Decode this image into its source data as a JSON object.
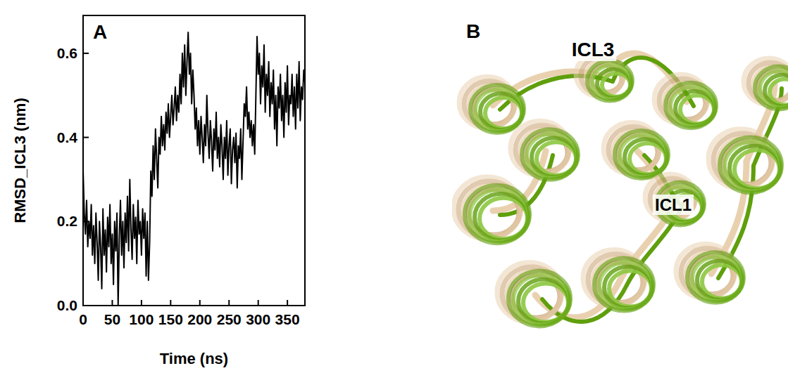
{
  "chart_data": {
    "type": "line",
    "title": "A",
    "xlabel": "Time (ns)",
    "ylabel": "RMSD_ICL3 (nm)",
    "color": "#000000",
    "grid": false,
    "xlim": [
      0,
      380
    ],
    "xticks": [
      0,
      50,
      100,
      150,
      200,
      250,
      300,
      350
    ],
    "ylim": [
      0,
      0.69
    ],
    "yticks": [
      {
        "value": 0,
        "label": "0.0"
      },
      0.2,
      0.4,
      0.6
    ],
    "x": [
      0,
      2,
      4,
      6,
      8,
      10,
      12,
      14,
      16,
      18,
      20,
      22,
      24,
      26,
      28,
      30,
      32,
      34,
      36,
      38,
      40,
      42,
      44,
      46,
      48,
      50,
      52,
      54,
      56,
      58,
      60,
      62,
      64,
      66,
      68,
      70,
      72,
      74,
      76,
      78,
      80,
      82,
      84,
      86,
      88,
      90,
      92,
      94,
      96,
      98,
      100,
      102,
      104,
      106,
      108,
      110,
      112,
      114,
      116,
      118,
      120,
      122,
      124,
      126,
      128,
      130,
      132,
      134,
      136,
      138,
      140,
      142,
      144,
      146,
      148,
      150,
      152,
      154,
      156,
      158,
      160,
      162,
      164,
      166,
      168,
      170,
      172,
      174,
      176,
      178,
      180,
      182,
      184,
      186,
      188,
      190,
      192,
      194,
      196,
      198,
      200,
      202,
      204,
      206,
      208,
      210,
      212,
      214,
      216,
      218,
      220,
      222,
      224,
      226,
      228,
      230,
      232,
      234,
      236,
      238,
      240,
      242,
      244,
      246,
      248,
      250,
      252,
      254,
      256,
      258,
      260,
      262,
      264,
      266,
      268,
      270,
      272,
      274,
      276,
      278,
      280,
      282,
      284,
      286,
      288,
      290,
      292,
      294,
      296,
      298,
      300,
      302,
      304,
      306,
      308,
      310,
      312,
      314,
      316,
      318,
      320,
      322,
      324,
      326,
      328,
      330,
      332,
      334,
      336,
      338,
      340,
      342,
      344,
      346,
      348,
      350,
      352,
      354,
      356,
      358,
      360,
      362,
      364,
      366,
      368,
      370,
      372,
      374,
      376,
      378,
      380
    ],
    "values": [
      0.32,
      0.22,
      0.17,
      0.25,
      0.14,
      0.2,
      0.16,
      0.24,
      0.12,
      0.19,
      0.1,
      0.22,
      0.15,
      0.06,
      0.2,
      0.14,
      0.04,
      0.23,
      0.12,
      0.18,
      0.08,
      0.21,
      0.14,
      0.24,
      0.1,
      0.17,
      0.05,
      0.2,
      0.13,
      0.22,
      0.0,
      0.16,
      0.25,
      0.12,
      0.2,
      0.09,
      0.22,
      0.15,
      0.26,
      0.13,
      0.3,
      0.18,
      0.11,
      0.24,
      0.16,
      0.21,
      0.1,
      0.25,
      0.17,
      0.2,
      0.12,
      0.23,
      0.16,
      0.22,
      0.07,
      0.2,
      0.06,
      0.15,
      0.32,
      0.26,
      0.38,
      0.3,
      0.42,
      0.35,
      0.28,
      0.4,
      0.36,
      0.45,
      0.38,
      0.43,
      0.37,
      0.46,
      0.41,
      0.48,
      0.4,
      0.45,
      0.5,
      0.43,
      0.47,
      0.52,
      0.44,
      0.5,
      0.46,
      0.55,
      0.48,
      0.6,
      0.52,
      0.62,
      0.5,
      0.58,
      0.65,
      0.55,
      0.6,
      0.48,
      0.56,
      0.5,
      0.42,
      0.47,
      0.38,
      0.44,
      0.36,
      0.45,
      0.4,
      0.34,
      0.43,
      0.38,
      0.5,
      0.41,
      0.35,
      0.44,
      0.39,
      0.32,
      0.42,
      0.37,
      0.46,
      0.35,
      0.4,
      0.33,
      0.43,
      0.38,
      0.3,
      0.4,
      0.35,
      0.44,
      0.31,
      0.38,
      0.42,
      0.29,
      0.37,
      0.4,
      0.34,
      0.41,
      0.28,
      0.38,
      0.35,
      0.42,
      0.3,
      0.39,
      0.48,
      0.45,
      0.52,
      0.42,
      0.46,
      0.4,
      0.44,
      0.38,
      0.43,
      0.36,
      0.5,
      0.64,
      0.55,
      0.6,
      0.48,
      0.57,
      0.52,
      0.62,
      0.46,
      0.55,
      0.5,
      0.58,
      0.45,
      0.53,
      0.48,
      0.56,
      0.42,
      0.5,
      0.38,
      0.52,
      0.47,
      0.55,
      0.44,
      0.5,
      0.4,
      0.53,
      0.46,
      0.57,
      0.43,
      0.5,
      0.48,
      0.55,
      0.45,
      0.52,
      0.42,
      0.55,
      0.47,
      0.58,
      0.44,
      0.52,
      0.49,
      0.56,
      0.53
    ]
  },
  "structure_view": {
    "panel": "B",
    "labels": [
      "ICL3",
      "ICL1"
    ]
  }
}
